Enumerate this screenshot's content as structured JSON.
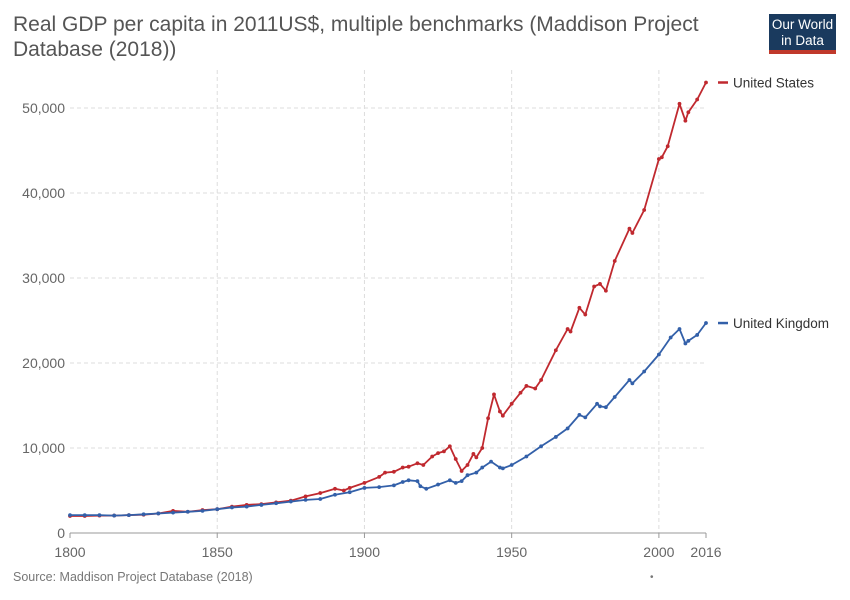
{
  "title": "Real GDP per capita in 2011US$, multiple benchmarks (Maddison Project Database (2018))",
  "logo": {
    "line1": "Our World",
    "line2": "in Data"
  },
  "source": "Source: Maddison Project Database (2018)",
  "footnote_mark": "•",
  "chart_data": {
    "type": "line",
    "title": "Real GDP per capita in 2011US$, multiple benchmarks (Maddison Project Database (2018))",
    "xlabel": "",
    "ylabel": "",
    "xlim": [
      1800,
      2016
    ],
    "ylim": [
      0,
      53000
    ],
    "x_ticks": [
      1800,
      1850,
      1900,
      1950,
      2000,
      2016
    ],
    "y_ticks": [
      0,
      10000,
      20000,
      30000,
      40000,
      50000
    ],
    "y_tick_labels": [
      "0",
      "10,000",
      "20,000",
      "30,000",
      "40,000",
      "50,000"
    ],
    "grid": "dashed",
    "legend": "right, at line ends",
    "series": [
      {
        "name": "United States",
        "color": "#c0292f",
        "points": [
          [
            1800,
            2000
          ],
          [
            1805,
            2000
          ],
          [
            1810,
            2050
          ],
          [
            1815,
            2050
          ],
          [
            1820,
            2100
          ],
          [
            1825,
            2150
          ],
          [
            1830,
            2300
          ],
          [
            1835,
            2600
          ],
          [
            1840,
            2500
          ],
          [
            1845,
            2700
          ],
          [
            1850,
            2800
          ],
          [
            1855,
            3100
          ],
          [
            1860,
            3300
          ],
          [
            1865,
            3400
          ],
          [
            1870,
            3600
          ],
          [
            1875,
            3800
          ],
          [
            1880,
            4300
          ],
          [
            1885,
            4700
          ],
          [
            1890,
            5200
          ],
          [
            1893,
            5000
          ],
          [
            1895,
            5300
          ],
          [
            1900,
            5900
          ],
          [
            1905,
            6600
          ],
          [
            1907,
            7100
          ],
          [
            1910,
            7200
          ],
          [
            1913,
            7700
          ],
          [
            1915,
            7800
          ],
          [
            1918,
            8200
          ],
          [
            1920,
            8000
          ],
          [
            1923,
            9000
          ],
          [
            1925,
            9400
          ],
          [
            1927,
            9600
          ],
          [
            1929,
            10200
          ],
          [
            1931,
            8700
          ],
          [
            1933,
            7300
          ],
          [
            1935,
            8000
          ],
          [
            1937,
            9300
          ],
          [
            1938,
            8900
          ],
          [
            1940,
            10000
          ],
          [
            1942,
            13500
          ],
          [
            1944,
            16300
          ],
          [
            1946,
            14300
          ],
          [
            1947,
            13800
          ],
          [
            1950,
            15200
          ],
          [
            1953,
            16500
          ],
          [
            1955,
            17300
          ],
          [
            1958,
            17000
          ],
          [
            1960,
            18000
          ],
          [
            1965,
            21500
          ],
          [
            1969,
            24000
          ],
          [
            1970,
            23700
          ],
          [
            1973,
            26500
          ],
          [
            1975,
            25700
          ],
          [
            1978,
            29000
          ],
          [
            1980,
            29300
          ],
          [
            1982,
            28500
          ],
          [
            1985,
            32000
          ],
          [
            1990,
            35800
          ],
          [
            1991,
            35300
          ],
          [
            1995,
            38000
          ],
          [
            2000,
            44000
          ],
          [
            2001,
            44200
          ],
          [
            2003,
            45500
          ],
          [
            2007,
            50500
          ],
          [
            2009,
            48500
          ],
          [
            2010,
            49500
          ],
          [
            2013,
            51000
          ],
          [
            2016,
            53000
          ]
        ]
      },
      {
        "name": "United Kingdom",
        "color": "#3360a9",
        "points": [
          [
            1800,
            2100
          ],
          [
            1805,
            2100
          ],
          [
            1810,
            2100
          ],
          [
            1815,
            2050
          ],
          [
            1820,
            2100
          ],
          [
            1825,
            2200
          ],
          [
            1830,
            2300
          ],
          [
            1835,
            2400
          ],
          [
            1840,
            2500
          ],
          [
            1845,
            2600
          ],
          [
            1850,
            2800
          ],
          [
            1855,
            3000
          ],
          [
            1860,
            3100
          ],
          [
            1865,
            3300
          ],
          [
            1870,
            3500
          ],
          [
            1875,
            3700
          ],
          [
            1880,
            3900
          ],
          [
            1885,
            4000
          ],
          [
            1890,
            4500
          ],
          [
            1895,
            4800
          ],
          [
            1900,
            5300
          ],
          [
            1905,
            5400
          ],
          [
            1910,
            5600
          ],
          [
            1913,
            6000
          ],
          [
            1915,
            6200
          ],
          [
            1918,
            6100
          ],
          [
            1919,
            5500
          ],
          [
            1921,
            5200
          ],
          [
            1925,
            5700
          ],
          [
            1929,
            6200
          ],
          [
            1931,
            5900
          ],
          [
            1933,
            6100
          ],
          [
            1935,
            6800
          ],
          [
            1938,
            7100
          ],
          [
            1940,
            7700
          ],
          [
            1943,
            8400
          ],
          [
            1946,
            7700
          ],
          [
            1947,
            7600
          ],
          [
            1950,
            8000
          ],
          [
            1955,
            9000
          ],
          [
            1960,
            10200
          ],
          [
            1965,
            11300
          ],
          [
            1969,
            12300
          ],
          [
            1973,
            13900
          ],
          [
            1975,
            13600
          ],
          [
            1979,
            15200
          ],
          [
            1980,
            14900
          ],
          [
            1982,
            14800
          ],
          [
            1985,
            16000
          ],
          [
            1990,
            18000
          ],
          [
            1991,
            17600
          ],
          [
            1995,
            19000
          ],
          [
            2000,
            21000
          ],
          [
            2004,
            23000
          ],
          [
            2007,
            24000
          ],
          [
            2009,
            22300
          ],
          [
            2010,
            22600
          ],
          [
            2013,
            23300
          ],
          [
            2016,
            24700
          ]
        ]
      }
    ]
  }
}
